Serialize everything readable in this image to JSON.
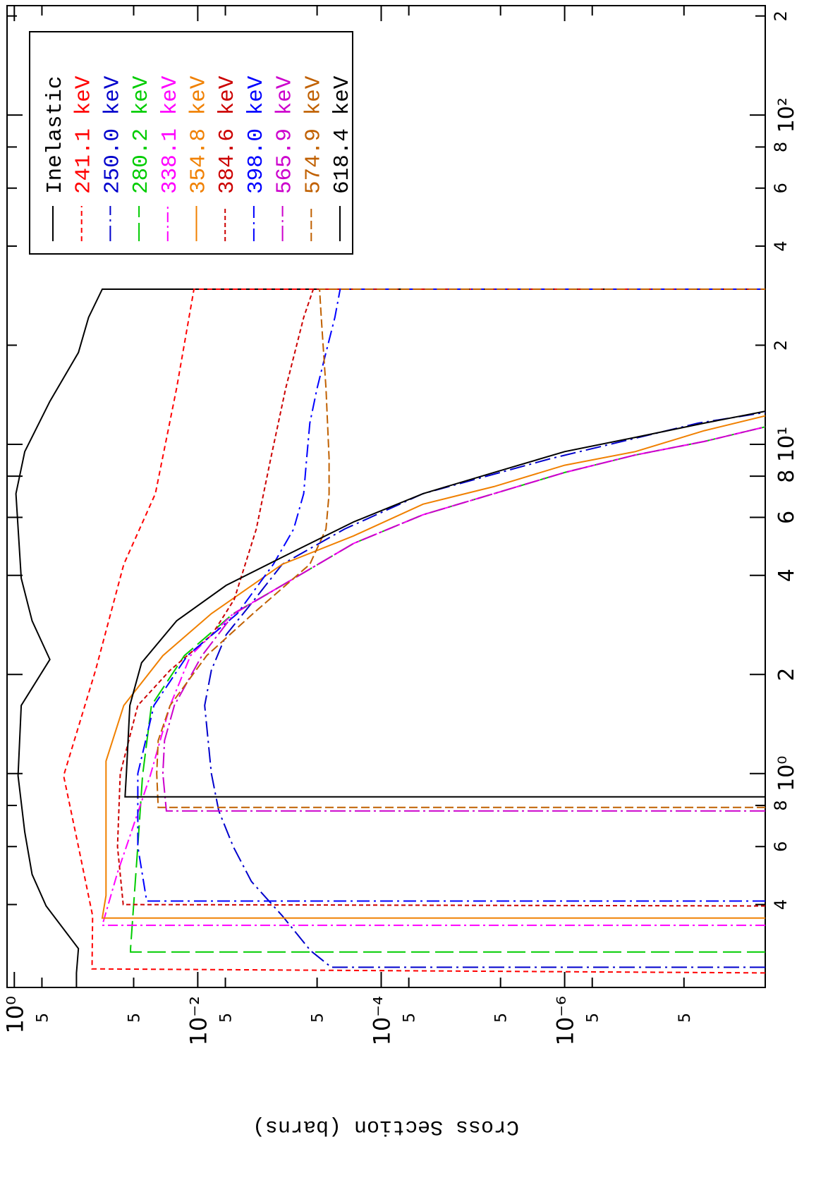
{
  "chart_data": {
    "type": "line",
    "y_label": "Cross Section (barns)",
    "xscale": "log",
    "yscale": "log",
    "xlim": [
      0.224,
      215
    ],
    "ylim": [
      6.5e-09,
      1.2
    ],
    "xticks": [
      {
        "value": 0.4,
        "label": "4"
      },
      {
        "value": 0.6,
        "label": "6"
      },
      {
        "value": 0.8,
        "label": "8"
      },
      {
        "value": 1,
        "label": "10⁰"
      },
      2,
      4,
      6,
      8,
      {
        "value": 10,
        "label": "10¹"
      },
      {
        "value": 20,
        "label": "2"
      },
      {
        "value": 40,
        "label": "4"
      },
      {
        "value": 60,
        "label": "6"
      },
      {
        "value": 80,
        "label": "8"
      },
      {
        "value": 100,
        "label": "10²"
      },
      {
        "value": 200,
        "label": "2"
      }
    ],
    "yticks": [
      {
        "value": 1,
        "label": "10⁰"
      },
      {
        "value": 0.5,
        "label": "5"
      },
      {
        "value": 0.05,
        "label": "5"
      },
      {
        "value": 0.01,
        "label": "10⁻²"
      },
      {
        "value": 0.005,
        "label": "5"
      },
      {
        "value": 0.0005,
        "label": "5"
      },
      {
        "value": 0.0001,
        "label": "10⁻⁴"
      },
      {
        "value": 5e-05,
        "label": "5"
      },
      {
        "value": 5e-06,
        "label": "5"
      },
      {
        "value": 1e-06,
        "label": "10⁻⁶"
      },
      {
        "value": 5e-07,
        "label": "5"
      },
      {
        "value": 5e-08,
        "label": "5"
      }
    ],
    "legend": "top-right",
    "series": [
      {
        "name": "Inelastic",
        "color": "#000000",
        "dash": "none",
        "x": [
          0.225,
          0.248,
          0.294,
          0.396,
          0.494,
          0.664,
          0.985,
          1.61,
          2.22,
          2.91,
          3.92,
          7.08,
          9.5,
          13.5,
          19,
          24.3,
          29.6,
          29.6
        ],
        "values": [
          0.21,
          0.21,
          0.2,
          0.45,
          0.64,
          0.77,
          0.91,
          0.84,
          0.41,
          0.64,
          0.84,
          0.96,
          0.77,
          0.41,
          0.2,
          0.155,
          0.11,
          6.5e-09
        ]
      },
      {
        "name": "241.1 keV",
        "color": "#ff0000",
        "dash": "7,5",
        "x": [
          0.248,
          0.255,
          0.37,
          0.6,
          0.985,
          1.61,
          2.06,
          4.32,
          7.08,
          14.8,
          29.6,
          29.6
        ],
        "values": [
          6.5e-09,
          0.142,
          0.14,
          0.2,
          0.29,
          0.17,
          0.13,
          0.064,
          0.029,
          0.017,
          0.011,
          6.5e-09
        ]
      },
      {
        "name": "250.0 keV",
        "color": "#0000cc",
        "dash": "22,6,3,6",
        "x": [
          0.258,
          0.258,
          0.29,
          0.37,
          0.47,
          0.6,
          0.77,
          1.0,
          1.61,
          2.06,
          2.64,
          3.38,
          4.32,
          5.53,
          7.08,
          9.06,
          11.6,
          12.5
        ],
        "values": [
          6.5e-09,
          0.00035,
          0.00059,
          0.0012,
          0.0026,
          0.0041,
          0.0059,
          0.0071,
          0.0084,
          0.0071,
          0.0049,
          0.0024,
          0.0012,
          0.00025,
          3.5e-05,
          1.4e-06,
          3.5e-08,
          6.5e-09
        ]
      },
      {
        "name": "280.2 keV",
        "color": "#00cc00",
        "dash": "26,8",
        "x": [
          0.287,
          0.287,
          0.294,
          0.602,
          0.985,
          1.61,
          2.28,
          3.06,
          3.73,
          5.0,
          6.11,
          7.08,
          8.21,
          9.28,
          10.2,
          11.3
        ],
        "values": [
          6.5e-09,
          0.054,
          0.054,
          0.045,
          0.04,
          0.032,
          0.014,
          0.0041,
          0.0012,
          0.0002,
          3.5e-05,
          5.9e-06,
          1e-06,
          1.7e-07,
          3e-08,
          6.5e-09
        ]
      },
      {
        "name": "338.1 keV",
        "color": "#ff00ff",
        "dash": "14,5,3,5",
        "x": [
          0.346,
          0.346,
          0.5,
          0.6,
          0.985,
          1.61,
          2.28,
          3.06,
          3.73,
          5.0,
          6.11,
          7.08,
          8.21,
          9.28,
          10.2,
          11.3
        ],
        "values": [
          6.5e-09,
          0.11,
          0.075,
          0.06,
          0.033,
          0.02,
          0.012,
          0.0041,
          0.0012,
          0.0002,
          3.5e-05,
          5.9e-06,
          1e-06,
          1.7e-07,
          3e-08,
          6.5e-09
        ]
      },
      {
        "name": "354.8 keV",
        "color": "#f08000",
        "dash": "none",
        "x": [
          0.364,
          0.364,
          0.426,
          1.09,
          1.61,
          2.28,
          3.06,
          4.32,
          5.27,
          6.58,
          7.44,
          8.64,
          9.5,
          11.0,
          12.2
        ],
        "values": [
          6.5e-09,
          0.11,
          0.1,
          0.1,
          0.064,
          0.024,
          0.0071,
          0.0012,
          0.0002,
          3.5e-05,
          5.9e-06,
          1e-06,
          1.7e-07,
          3e-08,
          6.5e-09
        ]
      },
      {
        "name": "384.6 keV",
        "color": "#cc0000",
        "dash": "6,4",
        "x": [
          0.396,
          0.4,
          0.6,
          1.0,
          1.61,
          2.06,
          2.64,
          3.38,
          5.53,
          9.06,
          14.8,
          24.3,
          29.6,
          29.6
        ],
        "values": [
          6.5e-09,
          0.065,
          0.075,
          0.07,
          0.045,
          0.02,
          0.007,
          0.004,
          0.0023,
          0.0016,
          0.0011,
          0.0007,
          0.00055,
          6.5e-09
        ]
      },
      {
        "name": "398.0 keV",
        "color": "#0000ff",
        "dash": "18,6,3,6",
        "x": [
          0.41,
          0.41,
          0.6,
          1.0,
          1.61,
          2.28,
          3.06,
          4.32,
          5.53,
          7.08,
          9.06,
          11.6,
          14.8,
          19,
          24.3,
          29.6,
          29.6
        ],
        "values": [
          6.5e-09,
          0.036,
          0.045,
          0.045,
          0.03,
          0.013,
          0.0037,
          0.0015,
          0.0009,
          0.0007,
          0.00065,
          0.0006,
          0.0005,
          0.0004,
          0.00032,
          0.00028,
          6.5e-09
        ]
      },
      {
        "name": "565.9 keV",
        "color": "#cc00cc",
        "dash": "22,5,3,5",
        "x": [
          0.77,
          0.77,
          1.0,
          1.26,
          1.61,
          2.28,
          3.06,
          3.73,
          5.0,
          6.11,
          7.08,
          8.21,
          9.28,
          10.2,
          11.3
        ],
        "values": [
          6.5e-09,
          0.022,
          0.024,
          0.023,
          0.018,
          0.009,
          0.004,
          0.0012,
          0.0002,
          3.5e-05,
          5.9e-06,
          1e-06,
          1.7e-07,
          3e-08,
          6.5e-09
        ]
      },
      {
        "name": "574.9 keV",
        "color": "#c06000",
        "dash": "12,5",
        "x": [
          0.789,
          0.789,
          1.0,
          1.26,
          1.61,
          2.28,
          3.06,
          4.32,
          5.53,
          7.08,
          9.06,
          14.8,
          24.3,
          29.6,
          29.6
        ],
        "values": [
          6.5e-09,
          0.027,
          0.028,
          0.027,
          0.02,
          0.008,
          0.0025,
          0.0006,
          0.0004,
          0.00037,
          0.00037,
          0.0004,
          0.00045,
          0.00047,
          6.5e-09
        ]
      },
      {
        "name": "618.4 keV",
        "color": "#000000",
        "dash": "none",
        "x": [
          0.85,
          0.85,
          1.0,
          1.61,
          2.17,
          2.91,
          3.73,
          4.54,
          5.81,
          7.08,
          8.21,
          9.5,
          10.5,
          11.6,
          12.6
        ],
        "values": [
          6.5e-09,
          0.062,
          0.06,
          0.055,
          0.041,
          0.017,
          0.0049,
          0.0012,
          0.0002,
          3.5e-05,
          5.9e-06,
          1e-06,
          1.7e-07,
          3e-08,
          6.5e-09
        ]
      }
    ]
  }
}
